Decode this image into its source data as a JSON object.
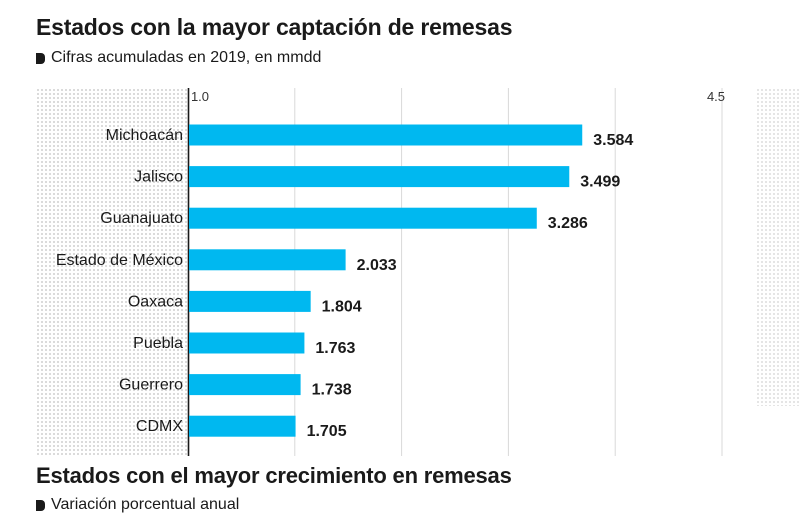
{
  "title": "Estados con la mayor captación de remesas",
  "subtitle": "Cifras acumuladas en 2019, en mmdd",
  "second_title": "Estados con el mayor crecimiento en remesas",
  "second_subtitle": "Variación porcentual anual",
  "colors": {
    "bar": "#00b8f0",
    "text": "#1a1a1a",
    "grid": "#d9d9d9"
  },
  "chart_data": {
    "type": "bar",
    "orientation": "horizontal",
    "categories": [
      "Michoacán",
      "Jalisco",
      "Guanajuato",
      "Estado de México",
      "Oaxaca",
      "Puebla",
      "Guerrero",
      "CDMX"
    ],
    "values": [
      3.584,
      3.499,
      3.286,
      2.033,
      1.804,
      1.763,
      1.738,
      1.705
    ],
    "value_labels": [
      "3.584",
      "3.499",
      "3.286",
      "2.033",
      "1.804",
      "1.763",
      "1.738",
      "1.705"
    ],
    "xlim": [
      1.0,
      4.5
    ],
    "x_tick_labels": [
      "1.0",
      "4.5"
    ],
    "grid": true,
    "title": "Estados con la mayor captación de remesas",
    "subtitle": "Cifras acumuladas en 2019, en mmdd"
  }
}
